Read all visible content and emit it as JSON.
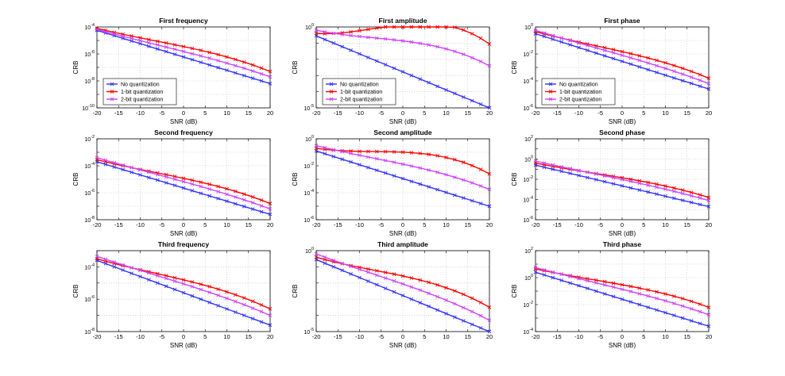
{
  "chart_data": {
    "type": "line",
    "shared": {
      "xlabel": "SNR (dB)",
      "ylabel": "CRB",
      "xlim": [
        -20,
        20
      ],
      "xticks": [
        -20,
        -15,
        -10,
        -5,
        0,
        5,
        10,
        15,
        20
      ],
      "x": [
        -20,
        -18,
        -16,
        -14,
        -12,
        -10,
        -8,
        -6,
        -4,
        -2,
        0,
        2,
        4,
        6,
        8,
        10,
        12,
        14,
        16,
        18,
        20
      ],
      "grid": true,
      "series": [
        {
          "name": "No quantization",
          "color": "#3333ff",
          "marker": "x"
        },
        {
          "name": "1-bit quantization",
          "color": "#ff0000",
          "marker": "x"
        },
        {
          "name": "2-bit quantization",
          "color": "#cc44ff",
          "marker": "x"
        }
      ],
      "legend_position": "lower-left",
      "legend_subplot": [
        0,
        1,
        2
      ]
    },
    "subplots": [
      {
        "title": "First frequency",
        "ylim_exp": [
          -10,
          -4
        ],
        "ytick_exps": [
          -10,
          -8,
          -6,
          -4
        ],
        "series": [
          {
            "start_exp": -4.25,
            "end_exp": -8.2,
            "curve": 0
          },
          {
            "start_exp": -4.1,
            "end_exp": -7.3,
            "curve": 0.9
          },
          {
            "start_exp": -4.18,
            "end_exp": -7.7,
            "curve": 0.45
          }
        ]
      },
      {
        "title": "First amplitude",
        "ylim_exp": [
          -5,
          0
        ],
        "ytick_exps": [
          -5,
          0
        ],
        "series": [
          {
            "start_exp": -0.55,
            "end_exp": -5,
            "curve": 0
          },
          {
            "start_exp": -0.4,
            "end_exp": -1.05,
            "curve": 3.2
          },
          {
            "start_exp": -0.2,
            "end_exp": -2.4,
            "curve": 1.6
          }
        ]
      },
      {
        "title": "First phase",
        "ylim_exp": [
          -6,
          0
        ],
        "ytick_exps": [
          -6,
          -4,
          -2,
          0
        ],
        "series": [
          {
            "start_exp": -0.5,
            "end_exp": -4.6,
            "curve": 0
          },
          {
            "start_exp": -0.35,
            "end_exp": -3.8,
            "curve": 0.9
          },
          {
            "start_exp": -0.25,
            "end_exp": -4.2,
            "curve": 0.45
          }
        ]
      },
      {
        "title": "Second frequency",
        "ylim_exp": [
          -8,
          -2
        ],
        "ytick_exps": [
          -8,
          -6,
          -4,
          -2
        ],
        "series": [
          {
            "start_exp": -3.7,
            "end_exp": -7.6,
            "curve": 0
          },
          {
            "start_exp": -3.55,
            "end_exp": -6.8,
            "curve": 0.9
          },
          {
            "start_exp": -3.4,
            "end_exp": -7.2,
            "curve": 0.45
          }
        ]
      },
      {
        "title": "Second amplitude",
        "ylim_exp": [
          -6,
          0
        ],
        "ytick_exps": [
          -6,
          -4,
          -2,
          0
        ],
        "series": [
          {
            "start_exp": -0.9,
            "end_exp": -5.0,
            "curve": 0
          },
          {
            "start_exp": -0.7,
            "end_exp": -2.6,
            "curve": 2.4
          },
          {
            "start_exp": -0.5,
            "end_exp": -3.75,
            "curve": 0.9
          }
        ]
      },
      {
        "title": "Second phase",
        "ylim_exp": [
          -6,
          2
        ],
        "ytick_exps": [
          -6,
          -4,
          -2,
          0,
          2
        ],
        "series": [
          {
            "start_exp": -0.6,
            "end_exp": -4.7,
            "curve": 0
          },
          {
            "start_exp": -0.4,
            "end_exp": -3.8,
            "curve": 0.9
          },
          {
            "start_exp": -0.2,
            "end_exp": -4.1,
            "curve": 0.45
          }
        ]
      },
      {
        "title": "Third frequency",
        "ylim_exp": [
          -8,
          -3
        ],
        "ytick_exps": [
          -8,
          -6,
          -4
        ],
        "series": [
          {
            "start_exp": -3.6,
            "end_exp": -7.6,
            "curve": 0
          },
          {
            "start_exp": -3.5,
            "end_exp": -6.6,
            "curve": 0.9
          },
          {
            "start_exp": -3.35,
            "end_exp": -7.0,
            "curve": 0.45
          }
        ]
      },
      {
        "title": "Third amplitude",
        "ylim_exp": [
          -5,
          0
        ],
        "ytick_exps": [
          -5,
          0
        ],
        "series": [
          {
            "start_exp": -0.55,
            "end_exp": -5.0,
            "curve": 0
          },
          {
            "start_exp": -0.4,
            "end_exp": -3.5,
            "curve": 1.4
          },
          {
            "start_exp": -0.2,
            "end_exp": -4.3,
            "curve": 0.7
          }
        ]
      },
      {
        "title": "Third phase",
        "ylim_exp": [
          -4,
          2
        ],
        "ytick_exps": [
          -4,
          -2,
          0,
          2
        ],
        "series": [
          {
            "start_exp": 0.4,
            "end_exp": -3.6,
            "curve": 0
          },
          {
            "start_exp": 0.65,
            "end_exp": -2.2,
            "curve": 0.9
          },
          {
            "start_exp": 0.75,
            "end_exp": -2.75,
            "curve": 0.5
          }
        ]
      }
    ]
  }
}
